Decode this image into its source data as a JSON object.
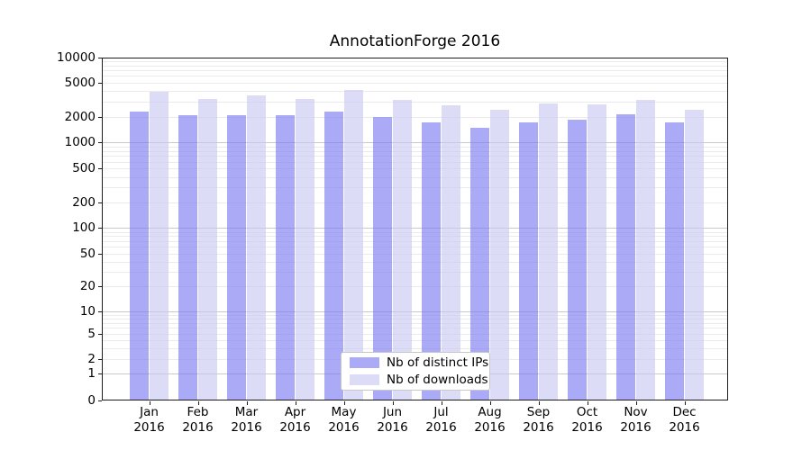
{
  "window": {
    "background": "#ffffff"
  },
  "chart_data": {
    "type": "bar",
    "title": "AnnotationForge 2016",
    "categories": [
      "Jan",
      "Feb",
      "Mar",
      "Apr",
      "May",
      "Jun",
      "Jul",
      "Aug",
      "Sep",
      "Oct",
      "Nov",
      "Dec"
    ],
    "x_year_label": "2016",
    "series": [
      {
        "name": "Nb of distinct IPs",
        "color": "#7878f0",
        "alpha": 0.63,
        "values": [
          2310,
          2060,
          2090,
          2070,
          2290,
          2000,
          1710,
          1490,
          1700,
          1840,
          2110,
          1700
        ]
      },
      {
        "name": "Nb of downloads",
        "color": "#c8c8f0",
        "alpha": 0.63,
        "values": [
          3920,
          3180,
          3500,
          3250,
          4100,
          3100,
          2740,
          2430,
          2830,
          2760,
          3120,
          2380
        ]
      }
    ],
    "xlabel": "",
    "ylabel": "",
    "yscale": "symlog",
    "ylim": [
      0,
      10000
    ],
    "yticks": [
      0,
      1,
      2,
      5,
      10,
      20,
      50,
      100,
      200,
      500,
      1000,
      2000,
      5000,
      10000
    ],
    "grid": {
      "orientation": "horizontal",
      "major_color": "#c9c9c9",
      "minor_color": "#ebebeb"
    },
    "legend_position": "lower center"
  }
}
